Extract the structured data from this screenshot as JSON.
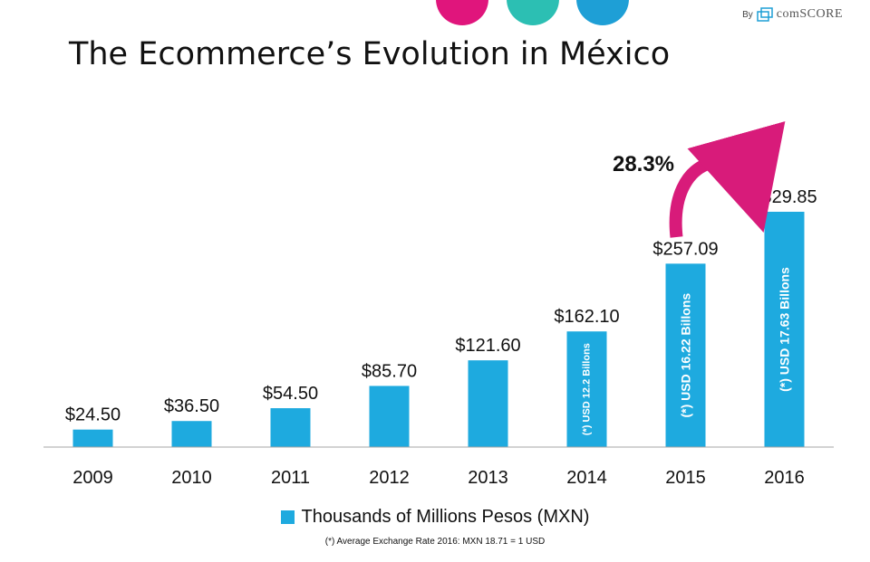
{
  "title": "The Ecommerce’s Evolution in México",
  "branding": {
    "by": "By",
    "name": "comSCORE",
    "icon": "comscore-logo-icon"
  },
  "decor": {
    "dot_colors": [
      "#e0157c",
      "#2cbfb3",
      "#1e9fd6"
    ]
  },
  "colors": {
    "bar": "#1eaadf",
    "arrow": "#d81b7a",
    "axis": "#a6a6a6",
    "text": "#111111"
  },
  "chart_data": {
    "type": "bar",
    "categories": [
      "2009",
      "2010",
      "2011",
      "2012",
      "2013",
      "2014",
      "2015",
      "2016"
    ],
    "values": [
      24.5,
      36.5,
      54.5,
      85.7,
      121.6,
      162.1,
      257.09,
      329.85
    ],
    "value_labels": [
      "$24.50",
      "$36.50",
      "$54.50",
      "$85.70",
      "$121.60",
      "$162.10",
      "$257.09",
      "$329.85"
    ],
    "inner_labels": [
      "",
      "",
      "",
      "",
      "",
      "(*) USD 12.2 Billons",
      "(*) USD 16.22 Billons",
      "(*) USD 17.63 Billons"
    ],
    "series": [
      {
        "name": "Thousands of Millions Pesos (MXN)",
        "values": [
          24.5,
          36.5,
          54.5,
          85.7,
          121.6,
          162.1,
          257.09,
          329.85
        ]
      }
    ],
    "ylim": [
      0,
      340
    ],
    "grid": false,
    "legend_position": "bottom",
    "annotation": {
      "text": "28.3%",
      "from": "2015",
      "to": "2016"
    }
  },
  "legend": {
    "label": "Thousands of Millions Pesos (MXN)"
  },
  "footnote": "(*) Average Exchange Rate 2016: MXN 18.71 = 1 USD"
}
